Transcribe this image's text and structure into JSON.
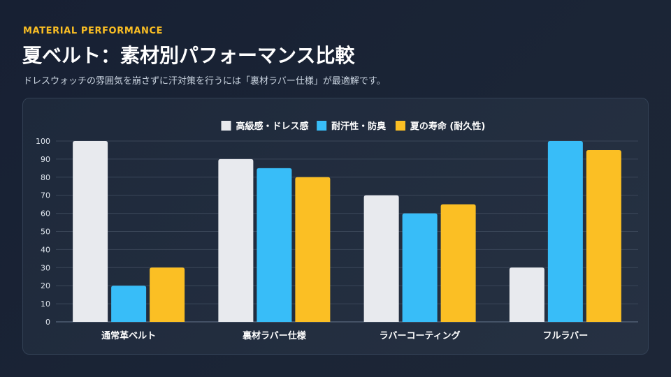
{
  "header": {
    "eyebrow": "MATERIAL PERFORMANCE",
    "title": "夏ベルト：素材別パフォーマンス比較",
    "subtitle": "ドレスウォッチの雰囲気を崩さずに汗対策を行うには「裏材ラバー仕様」が最適解です。"
  },
  "chart_data": {
    "type": "bar",
    "categories": [
      "通常革ベルト",
      "裏材ラバー仕様",
      "ラバーコーティング",
      "フルラバー"
    ],
    "series": [
      {
        "name": "高級感・ドレス感",
        "values": [
          100,
          90,
          70,
          30
        ],
        "color": "#e8eaee"
      },
      {
        "name": "耐汗性・防臭",
        "values": [
          20,
          85,
          60,
          100
        ],
        "color": "#38bdf8"
      },
      {
        "name": "夏の寿命 (耐久性)",
        "values": [
          30,
          80,
          65,
          95
        ],
        "color": "#fbbf24"
      }
    ],
    "ylim": [
      0,
      100
    ],
    "yticks": [
      0,
      10,
      20,
      30,
      40,
      50,
      60,
      70,
      80,
      90,
      100
    ],
    "grid": true,
    "legend_position": "top-center"
  }
}
